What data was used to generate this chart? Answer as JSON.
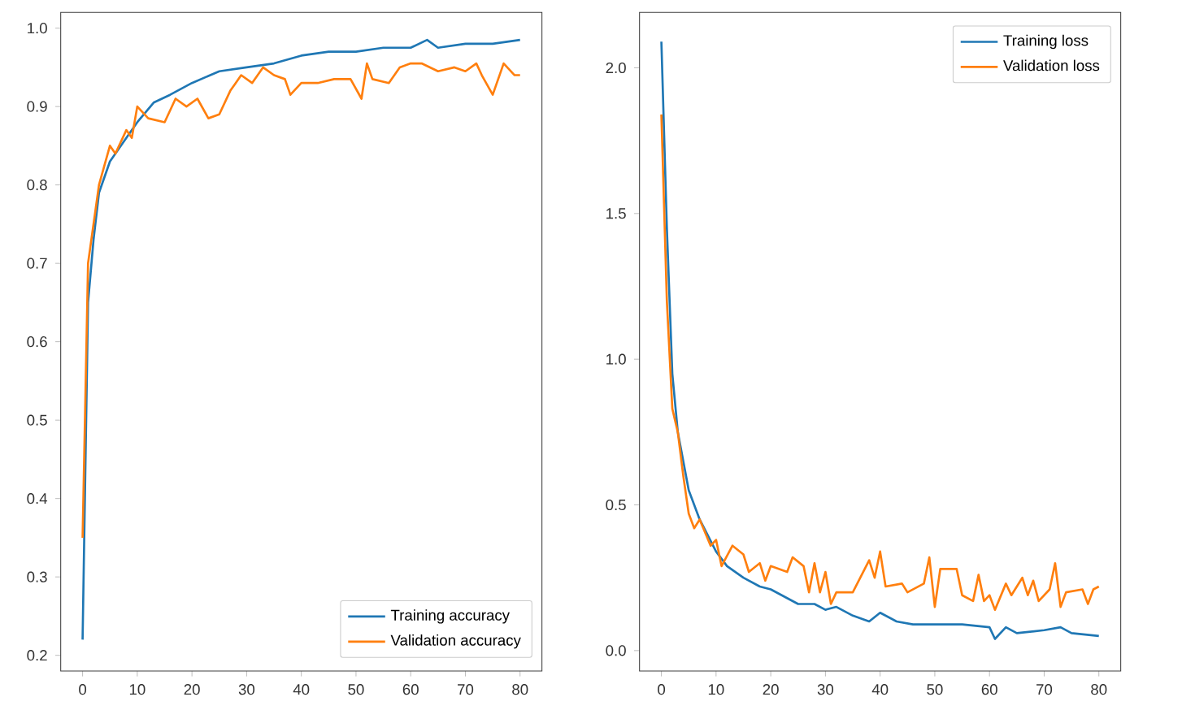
{
  "chart_data": [
    {
      "type": "line",
      "legend": "bottom right",
      "xlim": [
        -4,
        84
      ],
      "ylim": [
        0.18,
        1.02
      ],
      "xticks": [
        0,
        10,
        20,
        30,
        40,
        50,
        60,
        70,
        80
      ],
      "yticks": [
        0.2,
        0.3,
        0.4,
        0.5,
        0.6,
        0.7,
        0.8,
        0.9,
        {
          "value": 1,
          "label": "1.0"
        }
      ],
      "series": [
        {
          "name": "Training accuracy",
          "color": "#1f77b4",
          "x": [
            0,
            1,
            2,
            3,
            5,
            8,
            10,
            13,
            16,
            20,
            25,
            30,
            35,
            40,
            45,
            50,
            55,
            60,
            63,
            65,
            70,
            75,
            80
          ],
          "values": [
            0.22,
            0.65,
            0.73,
            0.79,
            0.83,
            0.86,
            0.88,
            0.905,
            0.915,
            0.93,
            0.945,
            0.95,
            0.955,
            0.965,
            0.97,
            0.97,
            0.975,
            0.975,
            0.985,
            0.975,
            0.98,
            0.98,
            0.985
          ]
        },
        {
          "name": "Validation accuracy",
          "color": "#ff7f0e",
          "x": [
            0,
            1,
            3,
            5,
            6,
            8,
            9,
            10,
            12,
            15,
            17,
            19,
            21,
            23,
            25,
            27,
            28,
            29,
            31,
            33,
            35,
            37,
            38,
            40,
            43,
            46,
            49,
            51,
            52,
            53,
            56,
            58,
            60,
            62,
            65,
            68,
            70,
            72,
            73,
            75,
            77,
            79,
            80
          ],
          "values": [
            0.35,
            0.7,
            0.8,
            0.85,
            0.84,
            0.87,
            0.86,
            0.9,
            0.885,
            0.88,
            0.91,
            0.9,
            0.91,
            0.885,
            0.89,
            0.92,
            0.93,
            0.94,
            0.93,
            0.95,
            0.94,
            0.935,
            0.915,
            0.93,
            0.93,
            0.935,
            0.935,
            0.91,
            0.955,
            0.935,
            0.93,
            0.95,
            0.955,
            0.955,
            0.945,
            0.95,
            0.945,
            0.955,
            0.94,
            0.915,
            0.955,
            0.94,
            0.94
          ]
        }
      ]
    },
    {
      "type": "line",
      "legend": "top right",
      "xlim": [
        -4,
        84
      ],
      "ylim": [
        -0.07,
        2.19
      ],
      "xticks": [
        0,
        10,
        20,
        30,
        40,
        50,
        60,
        70,
        80
      ],
      "yticks": [
        {
          "value": 0,
          "label": "0.0"
        },
        0.5,
        {
          "value": 1,
          "label": "1.0"
        },
        1.5,
        {
          "value": 2,
          "label": "2.0"
        }
      ],
      "series": [
        {
          "name": "Training loss",
          "color": "#1f77b4",
          "x": [
            0,
            1,
            2,
            3,
            5,
            7,
            10,
            12,
            15,
            18,
            20,
            25,
            28,
            30,
            32,
            35,
            38,
            40,
            43,
            46,
            50,
            55,
            60,
            61,
            63,
            65,
            70,
            73,
            75,
            80
          ],
          "values": [
            2.09,
            1.45,
            0.95,
            0.75,
            0.55,
            0.45,
            0.34,
            0.29,
            0.25,
            0.22,
            0.21,
            0.16,
            0.16,
            0.14,
            0.15,
            0.12,
            0.1,
            0.13,
            0.1,
            0.09,
            0.09,
            0.09,
            0.08,
            0.04,
            0.08,
            0.06,
            0.07,
            0.08,
            0.06,
            0.05
          ]
        },
        {
          "name": "Validation loss",
          "color": "#ff7f0e",
          "x": [
            0,
            1,
            2,
            3,
            4,
            5,
            6,
            7,
            9,
            10,
            11,
            13,
            15,
            16,
            18,
            19,
            20,
            23,
            24,
            26,
            27,
            28,
            29,
            30,
            31,
            32,
            35,
            38,
            39,
            40,
            41,
            44,
            45,
            48,
            49,
            50,
            51,
            54,
            55,
            57,
            58,
            59,
            60,
            61,
            63,
            64,
            66,
            67,
            68,
            69,
            71,
            72,
            73,
            74,
            77,
            78,
            79,
            80
          ],
          "values": [
            1.84,
            1.2,
            0.83,
            0.75,
            0.6,
            0.47,
            0.42,
            0.45,
            0.36,
            0.38,
            0.29,
            0.36,
            0.33,
            0.27,
            0.3,
            0.24,
            0.29,
            0.27,
            0.32,
            0.29,
            0.2,
            0.3,
            0.2,
            0.27,
            0.16,
            0.2,
            0.2,
            0.31,
            0.25,
            0.34,
            0.22,
            0.23,
            0.2,
            0.23,
            0.32,
            0.15,
            0.28,
            0.28,
            0.19,
            0.17,
            0.26,
            0.17,
            0.19,
            0.14,
            0.23,
            0.19,
            0.25,
            0.19,
            0.24,
            0.17,
            0.21,
            0.3,
            0.15,
            0.2,
            0.21,
            0.16,
            0.21,
            0.22
          ]
        }
      ]
    }
  ]
}
